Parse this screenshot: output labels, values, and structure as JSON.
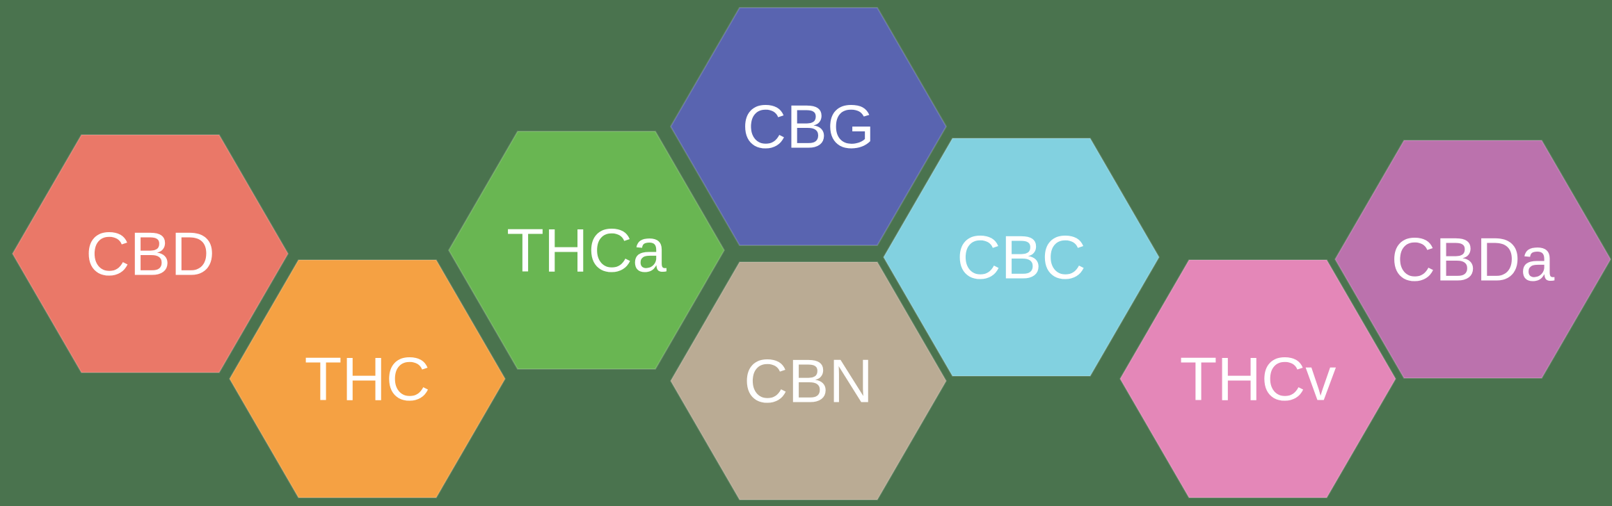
{
  "hexagons": [
    {
      "label": "CBD",
      "color": "#ea7868"
    },
    {
      "label": "THC",
      "color": "#f5a143"
    },
    {
      "label": "THCa",
      "color": "#69b652"
    },
    {
      "label": "CBG",
      "color": "#5964b0"
    },
    {
      "label": "CBN",
      "color": "#baab94"
    },
    {
      "label": "CBC",
      "color": "#82d1e0"
    },
    {
      "label": "THCv",
      "color": "#e487b8"
    },
    {
      "label": "CBDa",
      "color": "#bb72ad"
    }
  ],
  "colors": {
    "background": "#4a734e",
    "text": "#ffffff"
  }
}
